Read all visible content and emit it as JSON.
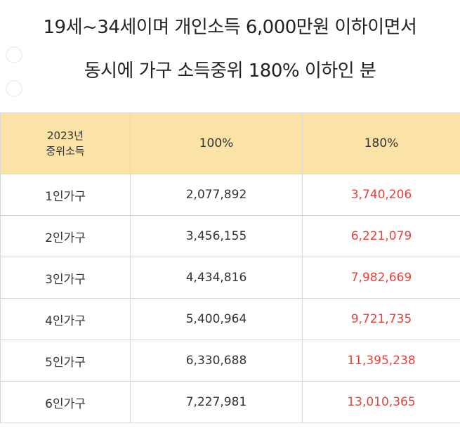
{
  "header": {
    "line1": "19세~34세이며 개인소득 6,000만원 이하이면서",
    "line2": "동시에 가구 소득중위 180% 이하인 분"
  },
  "table": {
    "header": {
      "year_line1": "2023년",
      "year_line2": "중위소득",
      "col_100": "100%",
      "col_180": "180%"
    },
    "rows": [
      {
        "household": "1인가구",
        "median_100": "2,077,892",
        "median_180": "3,740,206"
      },
      {
        "household": "2인가구",
        "median_100": "3,456,155",
        "median_180": "6,221,079"
      },
      {
        "household": "3인가구",
        "median_100": "4,434,816",
        "median_180": "7,982,669"
      },
      {
        "household": "4인가구",
        "median_100": "5,400,964",
        "median_180": "9,721,735"
      },
      {
        "household": "5인가구",
        "median_100": "6,330,688",
        "median_180": "11,395,238"
      },
      {
        "household": "6인가구",
        "median_100": "7,227,981",
        "median_180": "13,010,365"
      }
    ]
  },
  "colors": {
    "header_bg": "#fbe3a8",
    "accent_red": "#e8423a",
    "border": "#d8d8d8"
  }
}
